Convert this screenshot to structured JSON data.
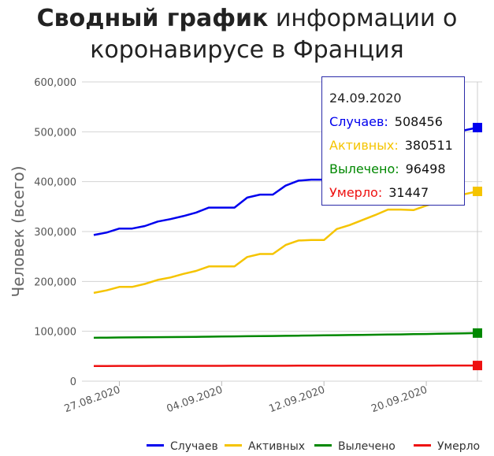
{
  "title": {
    "bold": "Сводный график",
    "rest": " информации о коронавирусе в Франция"
  },
  "chart_data": {
    "type": "line",
    "ylabel": "Человек (всего)",
    "xlabel": "",
    "ylim": [
      0,
      600000
    ],
    "y_ticks": [
      0,
      100000,
      200000,
      300000,
      400000,
      500000,
      600000
    ],
    "y_tick_labels": [
      "0",
      "100,000",
      "200,000",
      "300,000",
      "400,000",
      "500,000",
      "600,000"
    ],
    "grid": true,
    "legend_placement": "bottom",
    "x": [
      "2020-08-25",
      "2020-08-26",
      "2020-08-27",
      "2020-08-28",
      "2020-08-29",
      "2020-08-30",
      "2020-08-31",
      "2020-09-01",
      "2020-09-02",
      "2020-09-03",
      "2020-09-04",
      "2020-09-05",
      "2020-09-06",
      "2020-09-07",
      "2020-09-08",
      "2020-09-09",
      "2020-09-10",
      "2020-09-11",
      "2020-09-12",
      "2020-09-13",
      "2020-09-14",
      "2020-09-15",
      "2020-09-16",
      "2020-09-17",
      "2020-09-18",
      "2020-09-19",
      "2020-09-20",
      "2020-09-21",
      "2020-09-22",
      "2020-09-23",
      "2020-09-24"
    ],
    "x_tick_labels": [
      {
        "date": "2020-08-27",
        "label": "27.08.2020"
      },
      {
        "date": "2020-09-04",
        "label": "04.09.2020"
      },
      {
        "date": "2020-09-12",
        "label": "12.09.2020"
      },
      {
        "date": "2020-09-20",
        "label": "20.09.2020"
      }
    ],
    "series": [
      {
        "name": "Случаев",
        "color": "#0000ee",
        "values": [
          293000,
          298000,
          306000,
          306000,
          311000,
          320000,
          325000,
          331000,
          338000,
          348000,
          348000,
          348000,
          368000,
          374000,
          374000,
          392000,
          402000,
          404000,
          404000,
          415000,
          428000,
          440000,
          450000,
          458000,
          468000,
          468000,
          473000,
          481000,
          495000,
          503000,
          508456
        ]
      },
      {
        "name": "Активных",
        "color": "#f5c400",
        "values": [
          177000,
          182000,
          189000,
          189000,
          195000,
          203000,
          208000,
          215000,
          221000,
          230000,
          230000,
          230000,
          249000,
          255000,
          255000,
          273000,
          282000,
          283000,
          283000,
          305000,
          313000,
          323000,
          333000,
          344000,
          344000,
          343000,
          352000,
          360000,
          370000,
          375000,
          380511
        ]
      },
      {
        "name": "Вылечено",
        "color": "#008800",
        "values": [
          87000,
          87300,
          87600,
          87800,
          88000,
          88200,
          88400,
          88600,
          88900,
          89200,
          89500,
          89800,
          90100,
          90400,
          90700,
          91000,
          91300,
          91600,
          91900,
          92200,
          92500,
          92800,
          93100,
          93400,
          93800,
          94200,
          94600,
          95000,
          95500,
          96000,
          96498
        ]
      },
      {
        "name": "Умерло",
        "color": "#ee1111",
        "values": [
          30500,
          30550,
          30600,
          30650,
          30700,
          30720,
          30740,
          30760,
          30790,
          30820,
          30850,
          30880,
          30910,
          30940,
          30970,
          31000,
          31030,
          31060,
          31090,
          31120,
          31150,
          31180,
          31210,
          31240,
          31270,
          31300,
          31330,
          31360,
          31390,
          31420,
          31447
        ]
      }
    ]
  },
  "tooltip": {
    "date": "24.09.2020",
    "rows": [
      {
        "label": "Случаев:",
        "value": "508456",
        "color": "#0000ee"
      },
      {
        "label": "Активных:",
        "value": "380511",
        "color": "#f5c400"
      },
      {
        "label": "Вылечено:",
        "value": "96498",
        "color": "#008800"
      },
      {
        "label": "Умерло:",
        "value": "31447",
        "color": "#ee1111"
      }
    ]
  },
  "legend": [
    {
      "label": "Случаев",
      "color": "#0000ee"
    },
    {
      "label": "Активных",
      "color": "#f5c400"
    },
    {
      "label": "Вылечено",
      "color": "#008800"
    },
    {
      "label": "Умерло",
      "color": "#ee1111"
    }
  ]
}
